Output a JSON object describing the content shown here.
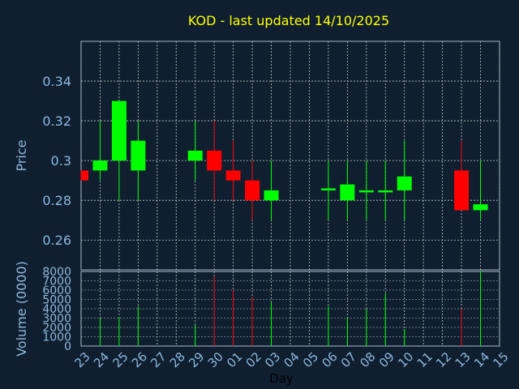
{
  "chart_data": {
    "type": "candlestick",
    "title": "KOD - last updated 14/10/2025",
    "xlabel": "Day",
    "ylabel": "Price",
    "volume_ylabel": "Volume (0000)",
    "ylim": [
      0.245,
      0.36
    ],
    "yticks": [
      "0.34",
      "0.32",
      "0.3",
      "0.28",
      "0.26"
    ],
    "ytick_values": [
      0.34,
      0.32,
      0.3,
      0.28,
      0.26
    ],
    "volume_ylim": [
      0,
      8000
    ],
    "volume_ticks": [
      "8000",
      "7000",
      "6000",
      "5000",
      "4000",
      "3000",
      "2000",
      "1000",
      "0"
    ],
    "volume_tick_values": [
      8000,
      7000,
      6000,
      5000,
      4000,
      3000,
      2000,
      1000,
      0
    ],
    "days": [
      "23",
      "24",
      "25",
      "26",
      "27",
      "28",
      "29",
      "30",
      "01",
      "02",
      "03",
      "04",
      "05",
      "06",
      "07",
      "08",
      "09",
      "10",
      "11",
      "12",
      "13",
      "14",
      "15"
    ],
    "grid": true,
    "colors": {
      "background": "#0f1f30",
      "up": "#00ff00",
      "down": "#ff0000",
      "title": "#ffff00",
      "axis_text": "#8fb8dc",
      "grid": "#c8c8c8",
      "xlabel": "#000000"
    },
    "candles": [
      {
        "day": "23",
        "open": 0.295,
        "close": 0.29,
        "high": 0.295,
        "low": 0.29,
        "volume": 0
      },
      {
        "day": "24",
        "open": 0.295,
        "close": 0.3,
        "high": 0.32,
        "low": 0.29,
        "volume": 3000
      },
      {
        "day": "25",
        "open": 0.3,
        "close": 0.33,
        "high": 0.33,
        "low": 0.28,
        "volume": 3100
      },
      {
        "day": "26",
        "open": 0.295,
        "close": 0.31,
        "high": 0.32,
        "low": 0.28,
        "volume": 4300
      },
      {
        "day": "29",
        "open": 0.3,
        "close": 0.305,
        "high": 0.32,
        "low": 0.29,
        "volume": 2300
      },
      {
        "day": "30",
        "open": 0.305,
        "close": 0.295,
        "high": 0.32,
        "low": 0.28,
        "volume": 7500
      },
      {
        "day": "01",
        "open": 0.295,
        "close": 0.29,
        "high": 0.31,
        "low": 0.28,
        "volume": 6000
      },
      {
        "day": "02",
        "open": 0.29,
        "close": 0.28,
        "high": 0.3,
        "low": 0.27,
        "volume": 5300
      },
      {
        "day": "03",
        "open": 0.28,
        "close": 0.285,
        "high": 0.3,
        "low": 0.27,
        "volume": 4700
      },
      {
        "day": "06",
        "open": 0.285,
        "close": 0.286,
        "high": 0.3,
        "low": 0.27,
        "volume": 4300
      },
      {
        "day": "07",
        "open": 0.28,
        "close": 0.288,
        "high": 0.3,
        "low": 0.27,
        "volume": 3000
      },
      {
        "day": "08",
        "open": 0.284,
        "close": 0.285,
        "high": 0.3,
        "low": 0.27,
        "volume": 4000
      },
      {
        "day": "09",
        "open": 0.284,
        "close": 0.285,
        "high": 0.3,
        "low": 0.27,
        "volume": 5700
      },
      {
        "day": "10",
        "open": 0.285,
        "close": 0.292,
        "high": 0.31,
        "low": 0.27,
        "volume": 1800
      },
      {
        "day": "13",
        "open": 0.295,
        "close": 0.275,
        "high": 0.31,
        "low": 0.275,
        "volume": 4000
      },
      {
        "day": "14",
        "open": 0.275,
        "close": 0.278,
        "high": 0.3,
        "low": 0.27,
        "volume": 8000
      }
    ]
  }
}
